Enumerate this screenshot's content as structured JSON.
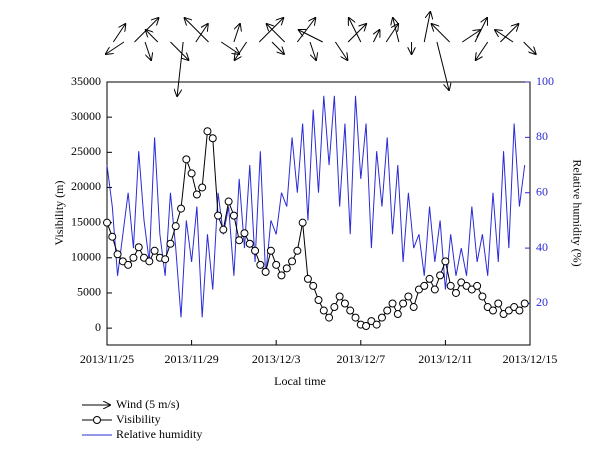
{
  "chart_data": {
    "type": "line",
    "x_label": "Local time",
    "y_label": "Visibility (m)",
    "y2_label": "Relative humidity (%)",
    "xlim": [
      0,
      20
    ],
    "xticks": [
      {
        "value": 0,
        "label": "2013/11/25"
      },
      {
        "value": 4,
        "label": "2013/11/29"
      },
      {
        "value": 8,
        "label": "2013/12/3"
      },
      {
        "value": 12,
        "label": "2013/12/7"
      },
      {
        "value": 16,
        "label": "2013/12/11"
      },
      {
        "value": 20,
        "label": "2013/12/15"
      }
    ],
    "ylim": [
      -2400,
      35000
    ],
    "yticks": [
      0,
      5000,
      10000,
      15000,
      20000,
      25000,
      30000,
      35000
    ],
    "y2lim": [
      5,
      100
    ],
    "y2ticks": [
      20,
      40,
      60,
      80,
      100
    ],
    "x": [
      0,
      0.25,
      0.5,
      0.75,
      1,
      1.25,
      1.5,
      1.75,
      2,
      2.25,
      2.5,
      2.75,
      3,
      3.25,
      3.5,
      3.75,
      4,
      4.25,
      4.5,
      4.75,
      5,
      5.25,
      5.5,
      5.75,
      6,
      6.25,
      6.5,
      6.75,
      7,
      7.25,
      7.5,
      7.75,
      8,
      8.25,
      8.5,
      8.75,
      9,
      9.25,
      9.5,
      9.75,
      10,
      10.25,
      10.5,
      10.75,
      11,
      11.25,
      11.5,
      11.75,
      12,
      12.25,
      12.5,
      12.75,
      13,
      13.25,
      13.5,
      13.75,
      14,
      14.25,
      14.5,
      14.75,
      15,
      15.25,
      15.5,
      15.75,
      16,
      16.25,
      16.5,
      16.75,
      17,
      17.25,
      17.5,
      17.75,
      18,
      18.25,
      18.5,
      18.75,
      19,
      19.25,
      19.5,
      19.75
    ],
    "series": [
      {
        "name": "Visibility",
        "color": "#000000",
        "marker": "circle",
        "values": [
          15000,
          13000,
          10500,
          9500,
          9000,
          10000,
          11500,
          10000,
          9500,
          11000,
          10000,
          9800,
          12000,
          14500,
          17000,
          24000,
          22000,
          19000,
          20000,
          28000,
          27000,
          16000,
          14000,
          18000,
          16000,
          12500,
          13500,
          12000,
          11000,
          9000,
          8000,
          11000,
          9000,
          7500,
          8500,
          9500,
          11000,
          15000,
          7000,
          6000,
          4000,
          2500,
          1500,
          3000,
          4500,
          3500,
          2500,
          1500,
          500,
          300,
          1000,
          500,
          1500,
          2500,
          3500,
          2000,
          3500,
          4500,
          3000,
          5500,
          6000,
          7000,
          5500,
          7500,
          9500,
          6000,
          5000,
          6500,
          6000,
          5500,
          6000,
          4500,
          3000,
          2500,
          3500,
          2000,
          2500,
          3000,
          2500,
          3500
        ]
      },
      {
        "name": "Relative humidity",
        "color": "#2b2bd6",
        "axis": "y2",
        "values": [
          70,
          55,
          30,
          45,
          60,
          40,
          75,
          50,
          35,
          80,
          45,
          30,
          60,
          40,
          15,
          50,
          35,
          55,
          15,
          45,
          25,
          60,
          45,
          55,
          30,
          65,
          40,
          70,
          35,
          75,
          30,
          50,
          45,
          60,
          55,
          80,
          60,
          85,
          50,
          90,
          60,
          95,
          70,
          95,
          55,
          85,
          45,
          95,
          65,
          85,
          40,
          75,
          55,
          80,
          45,
          70,
          35,
          60,
          40,
          45,
          30,
          55,
          35,
          50,
          25,
          45,
          30,
          40,
          30,
          55,
          35,
          45,
          30,
          60,
          35,
          75,
          40,
          85,
          55,
          70
        ]
      }
    ],
    "wind": {
      "name": "Wind (5 m/s)",
      "color": "#000000",
      "x": [
        0.3,
        0.8,
        1.3,
        1.8,
        2.4,
        3.0,
        3.6,
        4.2,
        4.8,
        5.4,
        6.0,
        6.6,
        7.2,
        7.8,
        8.4,
        9.0,
        9.6,
        10.2,
        10.8,
        11.4,
        12.0,
        12.6,
        13.2,
        13.8,
        14.4,
        15.0,
        15.6,
        16.2,
        16.8,
        17.4,
        18.0,
        18.6,
        19.2,
        19.7
      ],
      "u": [
        2,
        -3,
        4,
        1,
        -2,
        3,
        -1,
        2,
        -4,
        3,
        1,
        -2,
        4,
        2,
        -3,
        3,
        1,
        -4,
        2,
        3,
        -2,
        1,
        2,
        -1,
        0,
        1,
        2,
        -3,
        3,
        2,
        -2,
        3,
        -3,
        2
      ],
      "v": [
        3,
        -2,
        4,
        -3,
        2,
        -3,
        -9,
        3,
        4,
        -2,
        3,
        -3,
        4,
        -2,
        3,
        4,
        -3,
        2,
        -3,
        3,
        4,
        2,
        3,
        4,
        -2,
        5,
        -8,
        3,
        2,
        4,
        -3,
        3,
        2,
        -2
      ]
    }
  }
}
